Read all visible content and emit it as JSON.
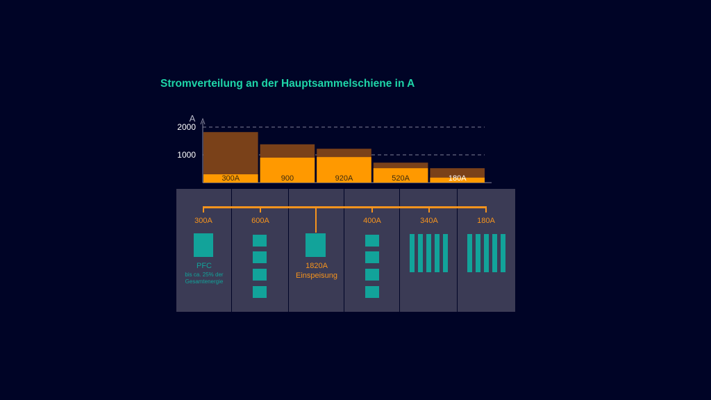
{
  "title": "Stromverteilung an der Hauptsammelschiene in A",
  "chart_data": {
    "type": "bar",
    "ylabel": "A",
    "ylim": [
      0,
      2300
    ],
    "yticks": [
      1000,
      2000
    ],
    "grid": "dashed",
    "categories": [
      "300A",
      "900",
      "920A",
      "520A",
      "180A"
    ],
    "series": [
      {
        "values": [
          300,
          900,
          920,
          520,
          180
        ],
        "color": "#ff9900"
      },
      {
        "values": [
          1820,
          1380,
          1220,
          720,
          520
        ],
        "color": "#7a4119"
      }
    ]
  },
  "cabinets": [
    {
      "current": "300A",
      "label": "PFC",
      "sublabel_1": "bis ca. 25% der",
      "sublabel_2": "Gesamtenergie"
    },
    {
      "current": "600A"
    },
    {
      "label_1": "1820A",
      "label_2": "Einspeisung"
    },
    {
      "current": "400A"
    },
    {
      "current": "340A"
    },
    {
      "current": "180A"
    }
  ],
  "colors": {
    "accent_green": "#1ed5a8",
    "orange": "#ff9900",
    "brown": "#7a4119",
    "teal": "#12a39a",
    "panel": "#3b3b55"
  }
}
